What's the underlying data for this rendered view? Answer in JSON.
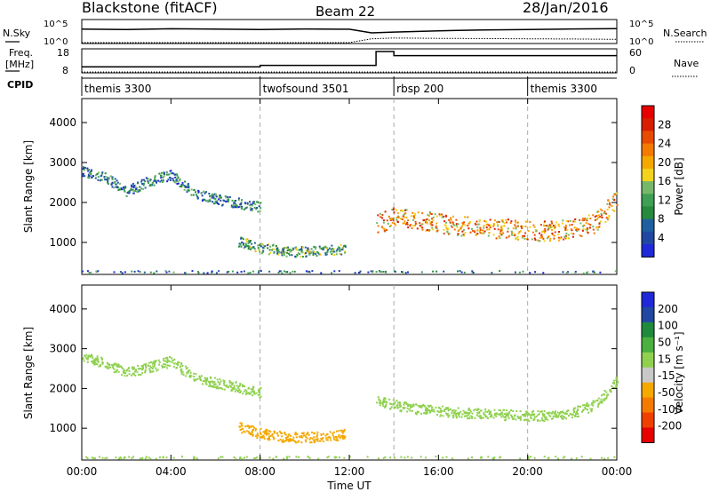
{
  "header": {
    "radar": "Blackstone (fitACF)",
    "beam": "Beam 22",
    "date": "28/Jan/2016"
  },
  "status_panels": {
    "nsky_label": "N.Sky",
    "nsearch_label": "N.Search",
    "nsky_ticks": [
      "10^5",
      "10^0"
    ],
    "freq_label_1": "Freq.",
    "freq_label_2": "[MHz]",
    "freq_ticks": [
      "18",
      "8"
    ],
    "nave_label": "Nave",
    "nave_ticks": [
      "60",
      "0"
    ],
    "cpid_label": "CPID"
  },
  "cpid_segments": [
    {
      "label": "themis 3300",
      "start": 0,
      "end": 8
    },
    {
      "label": "twofsound 3501",
      "start": 8,
      "end": 14
    },
    {
      "label": "rbsp 200",
      "start": 14,
      "end": 20
    },
    {
      "label": "themis 3300",
      "start": 20,
      "end": 24
    }
  ],
  "colors": {
    "divider": "#aaaaaa",
    "power_scale": [
      "#1f29d9",
      "#2147a3",
      "#1e5fa0",
      "#268a3c",
      "#3f9f55",
      "#76b86a",
      "#f2d21a",
      "#f5a800",
      "#f57a00",
      "#e84b00",
      "#d81e00",
      "#e60000"
    ],
    "velocity_scale": [
      "#e60000",
      "#f04000",
      "#f57a00",
      "#f5a800",
      "#c8c8c8",
      "#8fd14f",
      "#4ab040",
      "#1f8a3c",
      "#2147a3",
      "#1f29d9"
    ]
  },
  "chart_data": [
    {
      "type": "line",
      "title": "Blackstone (fitACF)",
      "series": [
        {
          "name": "N.Sky",
          "x": [
            0,
            2,
            4,
            6,
            8,
            10,
            12,
            13,
            14,
            16,
            18,
            20,
            22,
            24
          ],
          "values": [
            1500,
            1200,
            1800,
            1500,
            1200,
            1600,
            1400,
            200,
            300,
            600,
            900,
            1200,
            1600,
            2000
          ]
        },
        {
          "name": "N.Search",
          "x": [
            0,
            2,
            4,
            6,
            8,
            10,
            12,
            13,
            14,
            16,
            18,
            20,
            22,
            24
          ],
          "values": [
            1,
            1,
            1,
            1,
            1,
            1,
            1,
            8,
            12,
            10,
            9,
            8,
            7,
            6
          ]
        }
      ],
      "ylim": [
        1,
        100000
      ],
      "yscale": "log",
      "ytick_labels": [
        "10^5",
        "10^0"
      ],
      "xlim": [
        0,
        24
      ]
    },
    {
      "type": "line",
      "series": [
        {
          "name": "Freq.",
          "x": [
            0,
            8,
            8,
            13.2,
            13.2,
            14,
            14,
            24
          ],
          "values": [
            10.5,
            10.5,
            11.2,
            11.2,
            18,
            18,
            16,
            16
          ]
        },
        {
          "name": "Nave",
          "x": [
            0,
            24
          ],
          "values": [
            0,
            0
          ]
        }
      ],
      "ylabel": "Freq. [MHz]",
      "ylim": [
        8,
        18
      ],
      "y2lim": [
        0,
        60
      ],
      "xlim": [
        0,
        24
      ]
    },
    {
      "type": "heatmap",
      "ylabel": "Slant Range [km]",
      "yticks": [
        1000,
        2000,
        3000,
        4000
      ],
      "ylim": [
        200,
        4600
      ],
      "xlim": [
        0,
        24
      ],
      "colorbar": {
        "label": "Power [dB]",
        "ticks": [
          28,
          24,
          20,
          16,
          12,
          8,
          4
        ]
      },
      "echo_bands": [
        {
          "x": [
            0.0,
            1.0,
            2.0,
            3.0,
            4.0,
            5.0,
            6.0,
            7.0,
            8.0
          ],
          "y": [
            2780,
            2650,
            2300,
            2550,
            2700,
            2250,
            2100,
            2000,
            1900
          ],
          "value": 8
        },
        {
          "x": [
            7.0,
            8.0,
            9.0,
            10.0,
            11.0,
            11.8
          ],
          "y": [
            1050,
            880,
            800,
            780,
            820,
            860
          ],
          "value": 11
        },
        {
          "x": [
            13.2,
            14.0,
            15.0,
            16.0,
            17.0,
            18.0,
            19.0,
            20.0,
            21.0,
            22.0,
            23.0,
            24.0
          ],
          "y": [
            1450,
            1650,
            1600,
            1500,
            1420,
            1380,
            1350,
            1300,
            1300,
            1350,
            1500,
            2100
          ],
          "value": 20
        }
      ]
    },
    {
      "type": "heatmap",
      "xlabel": "Time UT",
      "ylabel": "Slant Range [km]",
      "x_tick_labels": [
        "00:00",
        "04:00",
        "08:00",
        "12:00",
        "16:00",
        "20:00",
        "00:00"
      ],
      "yticks": [
        1000,
        2000,
        3000,
        4000
      ],
      "ylim": [
        200,
        4600
      ],
      "xlim": [
        0,
        24
      ],
      "colorbar": {
        "label": "Velocity [m s⁻¹]",
        "ticks": [
          200,
          100,
          50,
          15,
          -15,
          -50,
          -100,
          -200
        ]
      },
      "echo_bands": [
        {
          "x": [
            0.0,
            1.0,
            2.0,
            3.0,
            4.0,
            5.0,
            6.0,
            7.0,
            8.0
          ],
          "y": [
            2800,
            2650,
            2400,
            2550,
            2700,
            2300,
            2150,
            2050,
            1900
          ],
          "value": 0
        },
        {
          "x": [
            7.0,
            8.0,
            9.0,
            10.0,
            11.0,
            11.8
          ],
          "y": [
            1050,
            880,
            800,
            780,
            820,
            860
          ],
          "value": -60
        },
        {
          "x": [
            13.2,
            14.0,
            15.0,
            16.0,
            17.0,
            18.0,
            19.0,
            20.0,
            21.0,
            22.0,
            23.0,
            24.0
          ],
          "y": [
            1700,
            1600,
            1500,
            1450,
            1400,
            1380,
            1350,
            1330,
            1330,
            1400,
            1600,
            2200
          ],
          "value": 0
        }
      ]
    }
  ]
}
